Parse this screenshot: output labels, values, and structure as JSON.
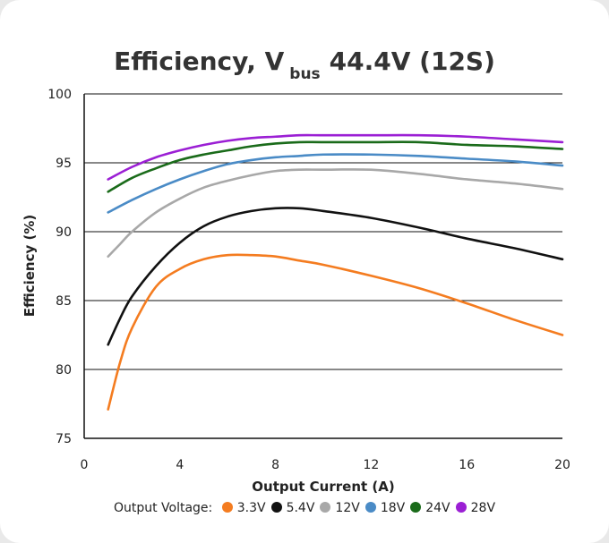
{
  "chart_data": {
    "type": "line",
    "title": {
      "prefix": "Efficiency, V",
      "subscript": "bus",
      "suffix": "44.4V (12S)"
    },
    "xlabel": "Output Current (A)",
    "ylabel": "Efficiency (%)",
    "xlim": [
      0,
      20
    ],
    "ylim": [
      75,
      100
    ],
    "xticks": [
      0,
      4,
      8,
      12,
      16,
      20
    ],
    "yticks": [
      75,
      80,
      85,
      90,
      95,
      100
    ],
    "grid": "horizontal",
    "legend_title": "Output Voltage:",
    "legend_position": "bottom",
    "series": [
      {
        "name": "3.3V",
        "color": "#f47c20",
        "x": [
          1,
          1.5,
          2,
          3,
          4,
          5,
          6,
          7,
          8,
          9,
          10,
          12,
          14,
          16,
          18,
          20
        ],
        "y": [
          77.1,
          80.5,
          83.0,
          86.0,
          87.3,
          88.0,
          88.3,
          88.3,
          88.2,
          87.9,
          87.6,
          86.8,
          85.9,
          84.8,
          83.6,
          82.5
        ]
      },
      {
        "name": "5.4V",
        "color": "#111111",
        "x": [
          1,
          1.5,
          2,
          3,
          4,
          5,
          6,
          7,
          8,
          9,
          10,
          12,
          14,
          16,
          18,
          20
        ],
        "y": [
          81.8,
          83.7,
          85.3,
          87.5,
          89.2,
          90.4,
          91.1,
          91.5,
          91.7,
          91.7,
          91.5,
          91.0,
          90.3,
          89.5,
          88.8,
          88.0
        ]
      },
      {
        "name": "12V",
        "color": "#a8a8a8",
        "x": [
          1,
          1.5,
          2,
          3,
          4,
          5,
          6,
          7,
          8,
          9,
          10,
          12,
          14,
          16,
          18,
          20
        ],
        "y": [
          88.2,
          89.1,
          90.0,
          91.4,
          92.4,
          93.2,
          93.7,
          94.1,
          94.4,
          94.5,
          94.5,
          94.5,
          94.2,
          93.8,
          93.5,
          93.1
        ]
      },
      {
        "name": "18V",
        "color": "#4a8bc6",
        "x": [
          1,
          2,
          3,
          4,
          5,
          6,
          7,
          8,
          9,
          10,
          12,
          14,
          16,
          18,
          20
        ],
        "y": [
          91.4,
          92.3,
          93.1,
          93.8,
          94.4,
          94.9,
          95.2,
          95.4,
          95.5,
          95.6,
          95.6,
          95.5,
          95.3,
          95.1,
          94.8
        ]
      },
      {
        "name": "24V",
        "color": "#1a6b1a",
        "x": [
          1,
          2,
          3,
          4,
          5,
          6,
          7,
          8,
          9,
          10,
          12,
          14,
          16,
          18,
          20
        ],
        "y": [
          92.9,
          93.9,
          94.6,
          95.2,
          95.6,
          95.9,
          96.2,
          96.4,
          96.5,
          96.5,
          96.5,
          96.5,
          96.3,
          96.2,
          96.0
        ]
      },
      {
        "name": "28V",
        "color": "#9b1fd4",
        "x": [
          1,
          2,
          3,
          4,
          5,
          6,
          7,
          8,
          9,
          10,
          12,
          14,
          16,
          18,
          20
        ],
        "y": [
          93.8,
          94.7,
          95.4,
          95.9,
          96.3,
          96.6,
          96.8,
          96.9,
          97.0,
          97.0,
          97.0,
          97.0,
          96.9,
          96.7,
          96.5
        ]
      }
    ]
  }
}
